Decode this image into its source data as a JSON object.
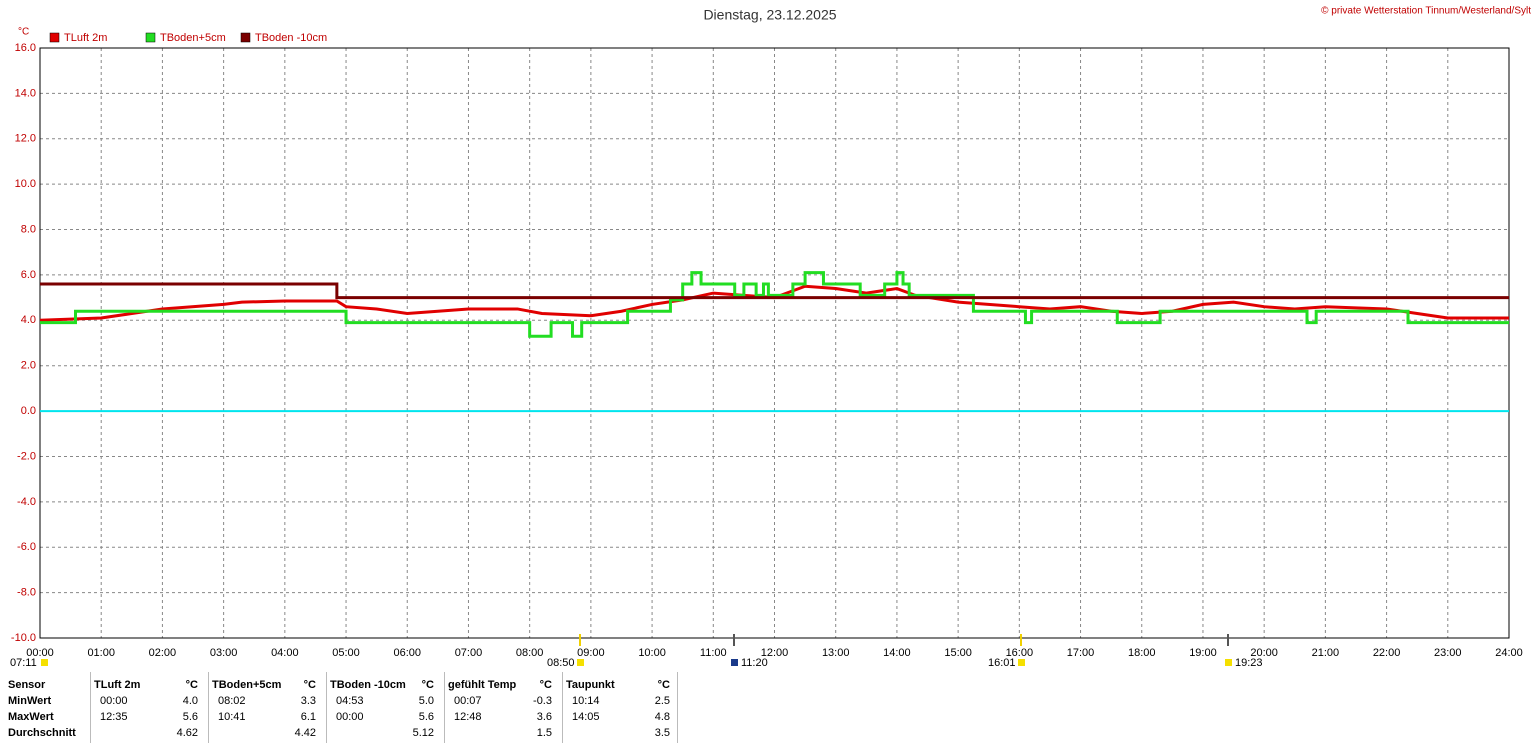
{
  "chart_data": {
    "type": "line",
    "title": "Dienstag, 23.12.2025",
    "credit": "© private Wetterstation Tinnum/Westerland/Sylt",
    "ylabel": "°C",
    "xlim": [
      0,
      24
    ],
    "xticks": [
      {
        "value": 0,
        "label": "00:00"
      },
      {
        "value": 1,
        "label": "01:00"
      },
      {
        "value": 2,
        "label": "02:00"
      },
      {
        "value": 3,
        "label": "03:00"
      },
      {
        "value": 4,
        "label": "04:00"
      },
      {
        "value": 5,
        "label": "05:00"
      },
      {
        "value": 6,
        "label": "06:00"
      },
      {
        "value": 7,
        "label": "07:00"
      },
      {
        "value": 8,
        "label": "08:00"
      },
      {
        "value": 9,
        "label": "09:00"
      },
      {
        "value": 10,
        "label": "10:00"
      },
      {
        "value": 11,
        "label": "11:00"
      },
      {
        "value": 12,
        "label": "12:00"
      },
      {
        "value": 13,
        "label": "13:00"
      },
      {
        "value": 14,
        "label": "14:00"
      },
      {
        "value": 15,
        "label": "15:00"
      },
      {
        "value": 16,
        "label": "16:00"
      },
      {
        "value": 17,
        "label": "17:00"
      },
      {
        "value": 18,
        "label": "18:00"
      },
      {
        "value": 19,
        "label": "19:00"
      },
      {
        "value": 20,
        "label": "20:00"
      },
      {
        "value": 21,
        "label": "21:00"
      },
      {
        "value": 22,
        "label": "22:00"
      },
      {
        "value": 23,
        "label": "23:00"
      },
      {
        "value": 24,
        "label": "24:00"
      }
    ],
    "ylim": [
      -10,
      16
    ],
    "yticks": [
      {
        "value": -10,
        "label": "-10.0"
      },
      {
        "value": -8,
        "label": "-8.0"
      },
      {
        "value": -6,
        "label": "-6.0"
      },
      {
        "value": -4,
        "label": "-4.0"
      },
      {
        "value": -2,
        "label": "-2.0"
      },
      {
        "value": 0,
        "label": "0.0"
      },
      {
        "value": 2,
        "label": "2.0"
      },
      {
        "value": 4,
        "label": "4.0"
      },
      {
        "value": 6,
        "label": "6.0"
      },
      {
        "value": 8,
        "label": "8.0"
      },
      {
        "value": 10,
        "label": "10.0"
      },
      {
        "value": 12,
        "label": "12.0"
      },
      {
        "value": 14,
        "label": "14.0"
      },
      {
        "value": 16,
        "label": "16.0"
      }
    ],
    "grid": true,
    "zero_line_color": "#00e5ee",
    "legend": "top-left",
    "series": [
      {
        "name": "TLuft 2m",
        "color": "#e00000",
        "x": [
          0,
          1,
          1.5,
          2,
          3,
          3.3,
          4,
          4.85,
          5,
          5.5,
          6,
          6.5,
          7,
          7.8,
          8.2,
          9,
          9.5,
          10,
          10.5,
          11,
          12,
          12.5,
          13,
          13.5,
          14,
          14.3,
          15,
          16,
          16.5,
          17,
          17.5,
          18,
          18.5,
          19,
          19.5,
          20,
          20.5,
          21,
          22,
          22.5,
          23,
          24
        ],
        "values": [
          4.0,
          4.1,
          4.3,
          4.5,
          4.7,
          4.8,
          4.85,
          4.85,
          4.6,
          4.5,
          4.3,
          4.4,
          4.5,
          4.5,
          4.3,
          4.2,
          4.4,
          4.7,
          4.9,
          5.2,
          5.0,
          5.5,
          5.4,
          5.2,
          5.4,
          5.1,
          4.8,
          4.6,
          4.5,
          4.6,
          4.4,
          4.3,
          4.4,
          4.7,
          4.8,
          4.6,
          4.5,
          4.6,
          4.5,
          4.3,
          4.1,
          4.1
        ]
      },
      {
        "name": "TBoden+5cm",
        "color": "#22dd22",
        "x": [
          0,
          0.58,
          0.58,
          5.0,
          5.0,
          8.0,
          8.0,
          8.35,
          8.35,
          8.7,
          8.7,
          8.85,
          8.85,
          9.6,
          9.6,
          10.3,
          10.3,
          10.5,
          10.5,
          10.65,
          10.65,
          10.8,
          10.8,
          11.35,
          11.35,
          11.5,
          11.5,
          11.7,
          11.7,
          11.82,
          11.82,
          11.9,
          11.9,
          12.3,
          12.3,
          12.5,
          12.5,
          12.8,
          12.8,
          13.4,
          13.4,
          13.8,
          13.8,
          14.0,
          14.0,
          14.1,
          14.1,
          14.2,
          14.2,
          15.25,
          15.25,
          16.1,
          16.1,
          16.2,
          16.2,
          17.6,
          17.6,
          18.3,
          18.3,
          20.7,
          20.7,
          20.85,
          20.85,
          22.35,
          22.35,
          24
        ],
        "values": [
          3.9,
          3.9,
          4.4,
          4.4,
          3.9,
          3.9,
          3.3,
          3.3,
          3.9,
          3.9,
          3.3,
          3.3,
          3.9,
          3.9,
          4.4,
          4.4,
          4.9,
          4.9,
          5.6,
          5.6,
          6.1,
          6.1,
          5.6,
          5.6,
          5.1,
          5.1,
          5.6,
          5.6,
          5.1,
          5.1,
          5.6,
          5.6,
          5.1,
          5.1,
          5.6,
          5.6,
          6.1,
          6.1,
          5.6,
          5.6,
          5.1,
          5.1,
          5.6,
          5.6,
          6.1,
          6.1,
          5.6,
          5.6,
          5.1,
          5.1,
          4.4,
          4.4,
          3.9,
          3.9,
          4.4,
          4.4,
          3.9,
          3.9,
          4.4,
          4.4,
          3.9,
          3.9,
          4.4,
          4.4,
          3.9,
          3.9
        ]
      },
      {
        "name": "TBoden -10cm",
        "color": "#7a0000",
        "x": [
          0,
          4.85,
          4.85,
          24
        ],
        "values": [
          5.6,
          5.6,
          5.0,
          5.0
        ]
      }
    ],
    "astro_markers": [
      "07:11",
      "08:50",
      "11:20",
      "16:01",
      "19:23"
    ]
  },
  "table": {
    "header": [
      "Sensor",
      "TLuft 2m",
      "°C",
      "TBoden+5cm",
      "°C",
      "TBoden -10cm",
      "°C",
      "gefühlt Temp",
      "°C",
      "Taupunkt",
      "°C"
    ],
    "rows": [
      [
        "MinWert",
        "00:00",
        "4.0",
        "08:02",
        "3.3",
        "04:53",
        "5.0",
        "00:07",
        "-0.3",
        "10:14",
        "2.5"
      ],
      [
        "MaxWert",
        "12:35",
        "5.6",
        "10:41",
        "6.1",
        "00:00",
        "5.6",
        "12:48",
        "3.6",
        "14:05",
        "4.8"
      ],
      [
        "Durchschnitt",
        null,
        "4.62",
        null,
        "4.42",
        null,
        "5.12",
        null,
        "1.5",
        null,
        "3.5"
      ]
    ]
  }
}
